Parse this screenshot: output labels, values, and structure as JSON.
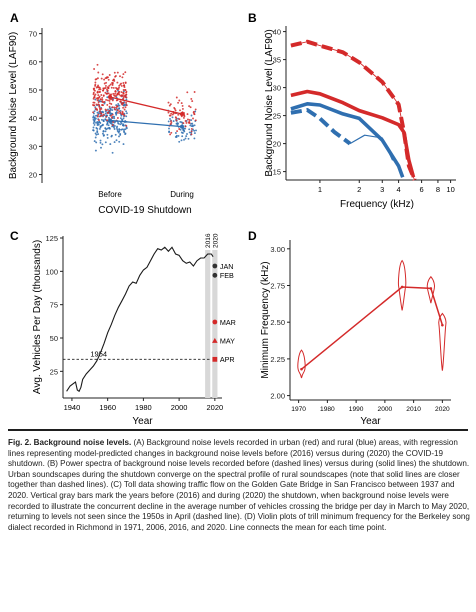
{
  "colors": {
    "urban": "#d42a2a",
    "rural": "#2f6fb0",
    "axis": "#222222",
    "gray_bar": "#d8d8d8"
  },
  "caption": {
    "lead": "Fig. 2. Background noise levels.",
    "text": " (A) Background noise levels recorded in urban (red) and rural (blue) areas, with regression lines representing model-predicted changes in background noise levels before (2016) versus during (2020) the COVID-19 shutdown. (B) Power spectra of background noise levels recorded before (dashed lines) versus during (solid lines) the shutdown. Urban soundscapes during the shutdown converge on the spectral profile of rural soundscapes (note that solid lines are closer together than dashed lines). (C) Toll data showing traffic flow on the Golden Gate Bridge in San Francisco between 1937 and 2020. Vertical gray bars mark the years before (2016) and during (2020) the shutdown, when background noise levels were recorded to illustrate the concurrent decline in the average number of vehicles crossing the bridge per day in March to May 2020, returning to levels not seen since the 1950s in April (dashed line). (D) Violin plots of trill minimum frequency for the Berkeley song dialect recorded in Richmond in 1971, 2006, 2016, and 2020. Line connects the mean for each time point."
  },
  "chart_data": [
    {
      "panel": "A",
      "type": "scatter",
      "xlabel": "COVID-19 Shutdown",
      "ylabel": "Background Noise Level (LAF90)",
      "categories": [
        "Before",
        "During"
      ],
      "ylim": [
        17,
        72
      ],
      "yticks": [
        20,
        30,
        40,
        50,
        60,
        70
      ],
      "series": [
        {
          "group": "urban",
          "mean_line": [
            47.5,
            41.5
          ],
          "spread": [
            [
              30,
              63
            ],
            [
              31,
              54
            ]
          ],
          "n": [
            240,
            70
          ]
        },
        {
          "group": "rural",
          "mean_line": [
            39.2,
            37.0
          ],
          "spread": [
            [
              24,
              53
            ],
            [
              28,
              47
            ]
          ],
          "n": [
            240,
            70
          ]
        }
      ]
    },
    {
      "panel": "B",
      "type": "line",
      "xlabel": "Frequency (kHz)",
      "ylabel": "Background Noise Level (LAF90)",
      "xscale": "log",
      "xlim": [
        0.55,
        11
      ],
      "xticks": [
        1,
        2,
        3,
        4,
        6,
        8,
        10
      ],
      "ylim": [
        13.5,
        41
      ],
      "yticks": [
        15,
        20,
        25,
        30,
        35,
        40
      ],
      "series": [
        {
          "group": "urban",
          "period": "before",
          "style": "dashed",
          "x": [
            0.6,
            0.8,
            1,
            1.5,
            2,
            3,
            4,
            4.4,
            4.8,
            5.3
          ],
          "y": [
            37.5,
            38.2,
            37.5,
            36.3,
            34.5,
            31,
            27,
            22,
            16,
            13.5
          ]
        },
        {
          "group": "urban",
          "period": "during",
          "style": "solid",
          "x": [
            0.6,
            0.8,
            1,
            1.5,
            2,
            3,
            4,
            4.4,
            4.8,
            5.2
          ],
          "y": [
            28.6,
            29.3,
            28.9,
            27.3,
            25.9,
            24.6,
            23.4,
            22,
            17,
            14
          ]
        },
        {
          "group": "rural",
          "period": "before",
          "style": "dashed",
          "x": [
            0.6,
            0.8,
            1,
            1.3,
            1.7
          ],
          "y": [
            25.5,
            26,
            24.5,
            22,
            20
          ]
        },
        {
          "group": "rural",
          "period": "during",
          "style": "solid",
          "x": [
            0.6,
            0.8,
            1,
            1.5,
            2,
            3,
            4,
            4.3
          ],
          "y": [
            26.2,
            27.1,
            26.9,
            25.3,
            24.5,
            20.6,
            16,
            14
          ]
        },
        {
          "group": "rural",
          "period": "before",
          "style": "thin",
          "x": [
            1.7,
            2.2,
            3,
            3.6
          ],
          "y": [
            20,
            21.5,
            21,
            17
          ]
        }
      ]
    },
    {
      "panel": "C",
      "type": "line",
      "xlabel": "Year",
      "ylabel": "Avg. Vehicles Per Day (thousands)",
      "xlim": [
        1935,
        2024
      ],
      "xticks": [
        1940,
        1960,
        1980,
        2000,
        2020
      ],
      "ylim": [
        5,
        122
      ],
      "yticks": [
        25,
        50,
        75,
        100,
        125
      ],
      "x": [
        1937,
        1939,
        1941,
        1942,
        1943,
        1944,
        1945,
        1946,
        1948,
        1950,
        1952,
        1954,
        1956,
        1958,
        1960,
        1962,
        1964,
        1966,
        1968,
        1970,
        1972,
        1974,
        1976,
        1978,
        1980,
        1982,
        1984,
        1986,
        1988,
        1990,
        1992,
        1994,
        1996,
        1998,
        2000,
        2002,
        2004,
        2006,
        2008,
        2010,
        2012,
        2014,
        2016,
        2018,
        2019
      ],
      "y": [
        10,
        14,
        16,
        17,
        11,
        10,
        13,
        19,
        23,
        26,
        29,
        33,
        39,
        46,
        54,
        60,
        67,
        73,
        78,
        83,
        89,
        92,
        91,
        97,
        101,
        103,
        108,
        113,
        117,
        116,
        118,
        115,
        118,
        113,
        112,
        108,
        106,
        107,
        104,
        108,
        110,
        110,
        113,
        113,
        111
      ],
      "reference_line": {
        "value": 34,
        "label": "1954"
      },
      "bars": [
        "2016",
        "2020"
      ],
      "month_points": [
        {
          "label": "JAN",
          "value": 104,
          "marker": "circle",
          "color": "#333333"
        },
        {
          "label": "FEB",
          "value": 97,
          "marker": "circle",
          "color": "#333333"
        },
        {
          "label": "MAR",
          "value": 62,
          "marker": "circle",
          "color": "#d42a2a"
        },
        {
          "label": "MAY",
          "value": 48,
          "marker": "triangle",
          "color": "#d42a2a"
        },
        {
          "label": "APR",
          "value": 34,
          "marker": "square",
          "color": "#d42a2a"
        }
      ]
    },
    {
      "panel": "D",
      "type": "line",
      "xlabel": "Year",
      "ylabel": "Minimum Frequency (kHz)",
      "xlim": [
        1967,
        2023
      ],
      "xticks": [
        1970,
        1980,
        1990,
        2000,
        2010,
        2020
      ],
      "ylim": [
        1.97,
        3.06
      ],
      "yticks": [
        2.0,
        2.25,
        2.5,
        2.75,
        3.0
      ],
      "x": [
        1971,
        2006,
        2016,
        2020
      ],
      "y": [
        2.18,
        2.74,
        2.73,
        2.48
      ],
      "violins": [
        {
          "year": 1971,
          "min": 2.12,
          "max": 2.31
        },
        {
          "year": 2006,
          "min": 2.58,
          "max": 2.92
        },
        {
          "year": 2016,
          "min": 2.63,
          "max": 2.81
        },
        {
          "year": 2020,
          "min": 2.17,
          "max": 2.56
        }
      ]
    }
  ]
}
